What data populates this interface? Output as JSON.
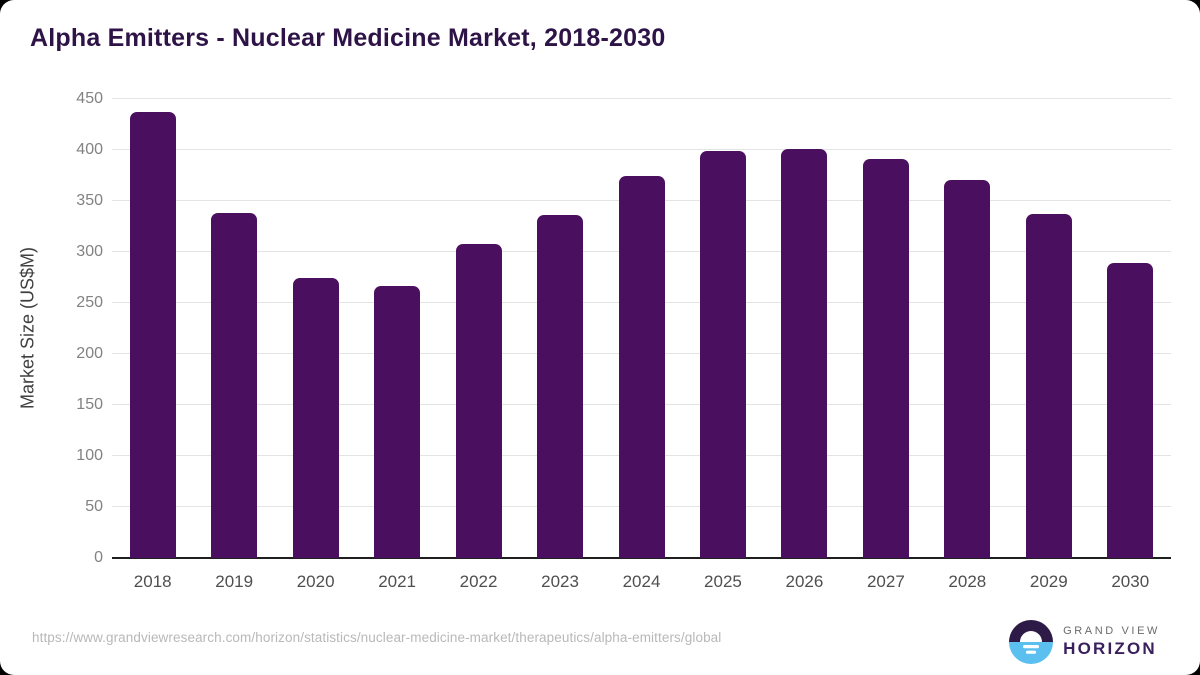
{
  "page": {
    "title": "Alpha Emitters - Nuclear Medicine Market, 2018-2030"
  },
  "chart_data": {
    "type": "bar",
    "title": "Alpha Emitters - Nuclear Medicine Market, 2018-2030",
    "categories": [
      "2018",
      "2019",
      "2020",
      "2021",
      "2022",
      "2023",
      "2024",
      "2025",
      "2026",
      "2027",
      "2028",
      "2029",
      "2030"
    ],
    "values": [
      437,
      338,
      275,
      267,
      308,
      336,
      375,
      399,
      401,
      391,
      371,
      337,
      289
    ],
    "xlabel": "",
    "ylabel": "Market Size (US$M)",
    "ylim": [
      0,
      450
    ],
    "yticks": [
      0,
      50,
      100,
      150,
      200,
      250,
      300,
      350,
      400,
      450
    ],
    "grid": true,
    "legend": "none",
    "bar_color": "#4a0f5e"
  },
  "footer": {
    "source_url": "https://www.grandviewresearch.com/horizon/statistics/nuclear-medicine-market/therapeutics/alpha-emitters/global",
    "logo": {
      "line1": "GRAND VIEW",
      "line2": "HORIZON"
    }
  },
  "colors": {
    "bar": "#4a0f5e",
    "title_text": "#2e1347",
    "logo_purple": "#2e1a47",
    "logo_blue": "#5bc0f0",
    "gridline": "#e4e4e4",
    "axis_line": "#1f1f1f"
  }
}
